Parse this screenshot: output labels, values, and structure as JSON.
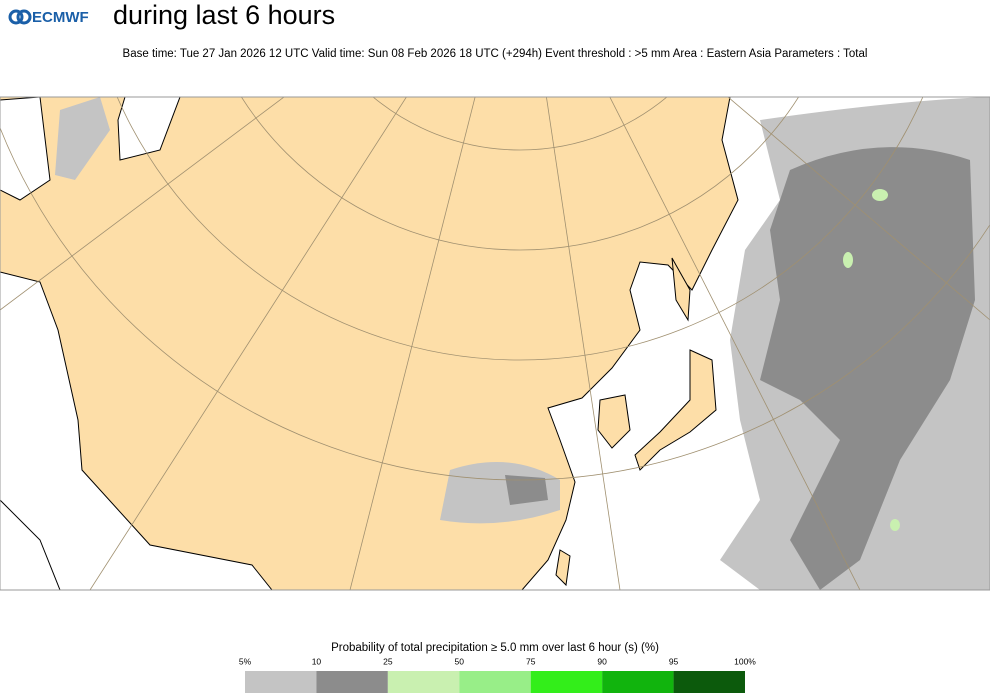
{
  "header": {
    "logo": "ECMWF",
    "title": "during last 6 hours",
    "subtitle": "Base time: Tue 27 Jan 2026 12 UTC Valid time: Sun 08 Feb 2026 18 UTC (+294h) Event threshold : >5 mm Area : Eastern Asia Parameters : Total"
  },
  "legend": {
    "title": "Probability of total precipitation ≥ 5.0 mm over last 6 hour (s) (%)",
    "ticks": [
      {
        "value": 5,
        "label": "5%"
      },
      10,
      25,
      50,
      75,
      90,
      95,
      {
        "value": 100,
        "label": "100%"
      }
    ],
    "colors": [
      "#c4c4c4",
      "#8c8c8c",
      "#c9f0b0",
      "#98ee88",
      "#33ee1a",
      "#11b40d",
      "#0c5a0c"
    ]
  }
}
